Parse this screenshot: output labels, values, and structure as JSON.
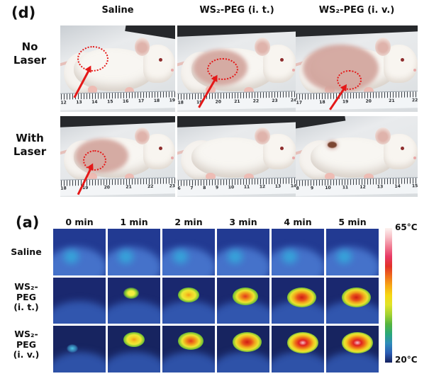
{
  "panel_d": {
    "tag": "(d)",
    "col_headers": [
      "Saline",
      "WS₂-PEG (i. t.)",
      "WS₂-PEG (i. v.)"
    ],
    "row_labels": [
      "No\nLaser",
      "With\nLaser"
    ],
    "annotation_color": "#e41818",
    "photos": [
      {
        "condition": "No Laser",
        "group": "Saline",
        "ruler_numbers": [
          12,
          13,
          14,
          15,
          16,
          17,
          18,
          19
        ],
        "shaved": false,
        "annotated": true,
        "scar": false
      },
      {
        "condition": "No Laser",
        "group": "WS2-PEG (i. t.)",
        "ruler_numbers": [
          18,
          19,
          20,
          21,
          22,
          23,
          24
        ],
        "shaved": true,
        "annotated": true,
        "scar": false
      },
      {
        "condition": "No Laser",
        "group": "WS2-PEG (i. v.)",
        "ruler_numbers": [
          17,
          18,
          19,
          20,
          21,
          22
        ],
        "shaved": true,
        "annotated": true,
        "scar": false
      },
      {
        "condition": "With Laser",
        "group": "Saline",
        "ruler_numbers": [
          18,
          19,
          20,
          21,
          22,
          23
        ],
        "shaved": true,
        "annotated": true,
        "scar": false
      },
      {
        "condition": "With Laser",
        "group": "WS2-PEG (i. t.)",
        "ruler_numbers": [
          6,
          7,
          8,
          9,
          10,
          11,
          12,
          13,
          14
        ],
        "shaved": false,
        "annotated": false,
        "scar": false
      },
      {
        "condition": "With Laser",
        "group": "WS2-PEG (i. v.)",
        "ruler_numbers": [
          8,
          9,
          10,
          11,
          12,
          13,
          14,
          15
        ],
        "shaved": false,
        "annotated": false,
        "scar": true
      }
    ]
  },
  "panel_a": {
    "tag": "(a)",
    "time_labels": [
      "0 min",
      "1 min",
      "2 min",
      "3 min",
      "4 min",
      "5 min"
    ],
    "row_labels": [
      "Saline",
      "WS₂-\nPEG\n(i. t.)",
      "WS₂-\nPEG\n(i. v.)"
    ],
    "thermal_rows": [
      {
        "group": "Saline",
        "hotspot_levels": [
          0,
          0,
          0,
          0,
          0,
          0
        ]
      },
      {
        "group": "WS2-PEG (i. t.)",
        "hotspot_levels": [
          0,
          2,
          3,
          4,
          5,
          5
        ]
      },
      {
        "group": "WS2-PEG (i. v.)",
        "hotspot_levels": [
          1,
          3,
          4,
          5,
          6,
          6
        ]
      }
    ],
    "colorbar": {
      "max_label": "65°C",
      "min_label": "20°C",
      "gradient_stops": [
        "#fdf3f0",
        "#f7bcc4",
        "#f07890",
        "#e83864",
        "#e23228",
        "#ef6d1c",
        "#f7a815",
        "#f6d813",
        "#dfe32a",
        "#a3d232",
        "#55b43e",
        "#2aa878",
        "#2f8cba",
        "#2b5cb4",
        "#15225e"
      ]
    }
  }
}
